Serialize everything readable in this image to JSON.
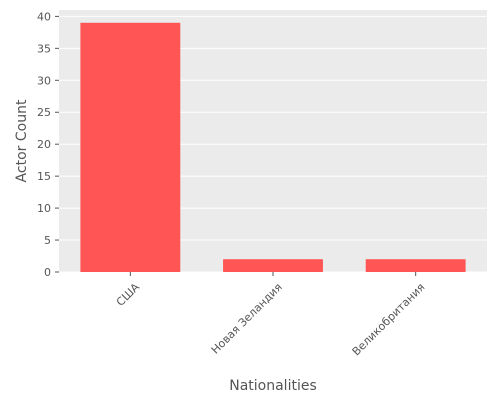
{
  "chart_data": {
    "type": "bar",
    "categories": [
      "США",
      "Новая Зеландия",
      "Великобритания"
    ],
    "values": [
      39,
      2,
      2
    ],
    "title": "",
    "xlabel": "Nationalities",
    "ylabel": "Actor Count",
    "ylim": [
      0,
      41
    ],
    "yticks": [
      0,
      5,
      10,
      15,
      20,
      25,
      30,
      35,
      40
    ],
    "grid": true,
    "legend": "none",
    "colors": {
      "bar": "#ff5555",
      "plot_background": "#ebebeb",
      "grid": "#ffffff",
      "text": "#555555"
    }
  }
}
